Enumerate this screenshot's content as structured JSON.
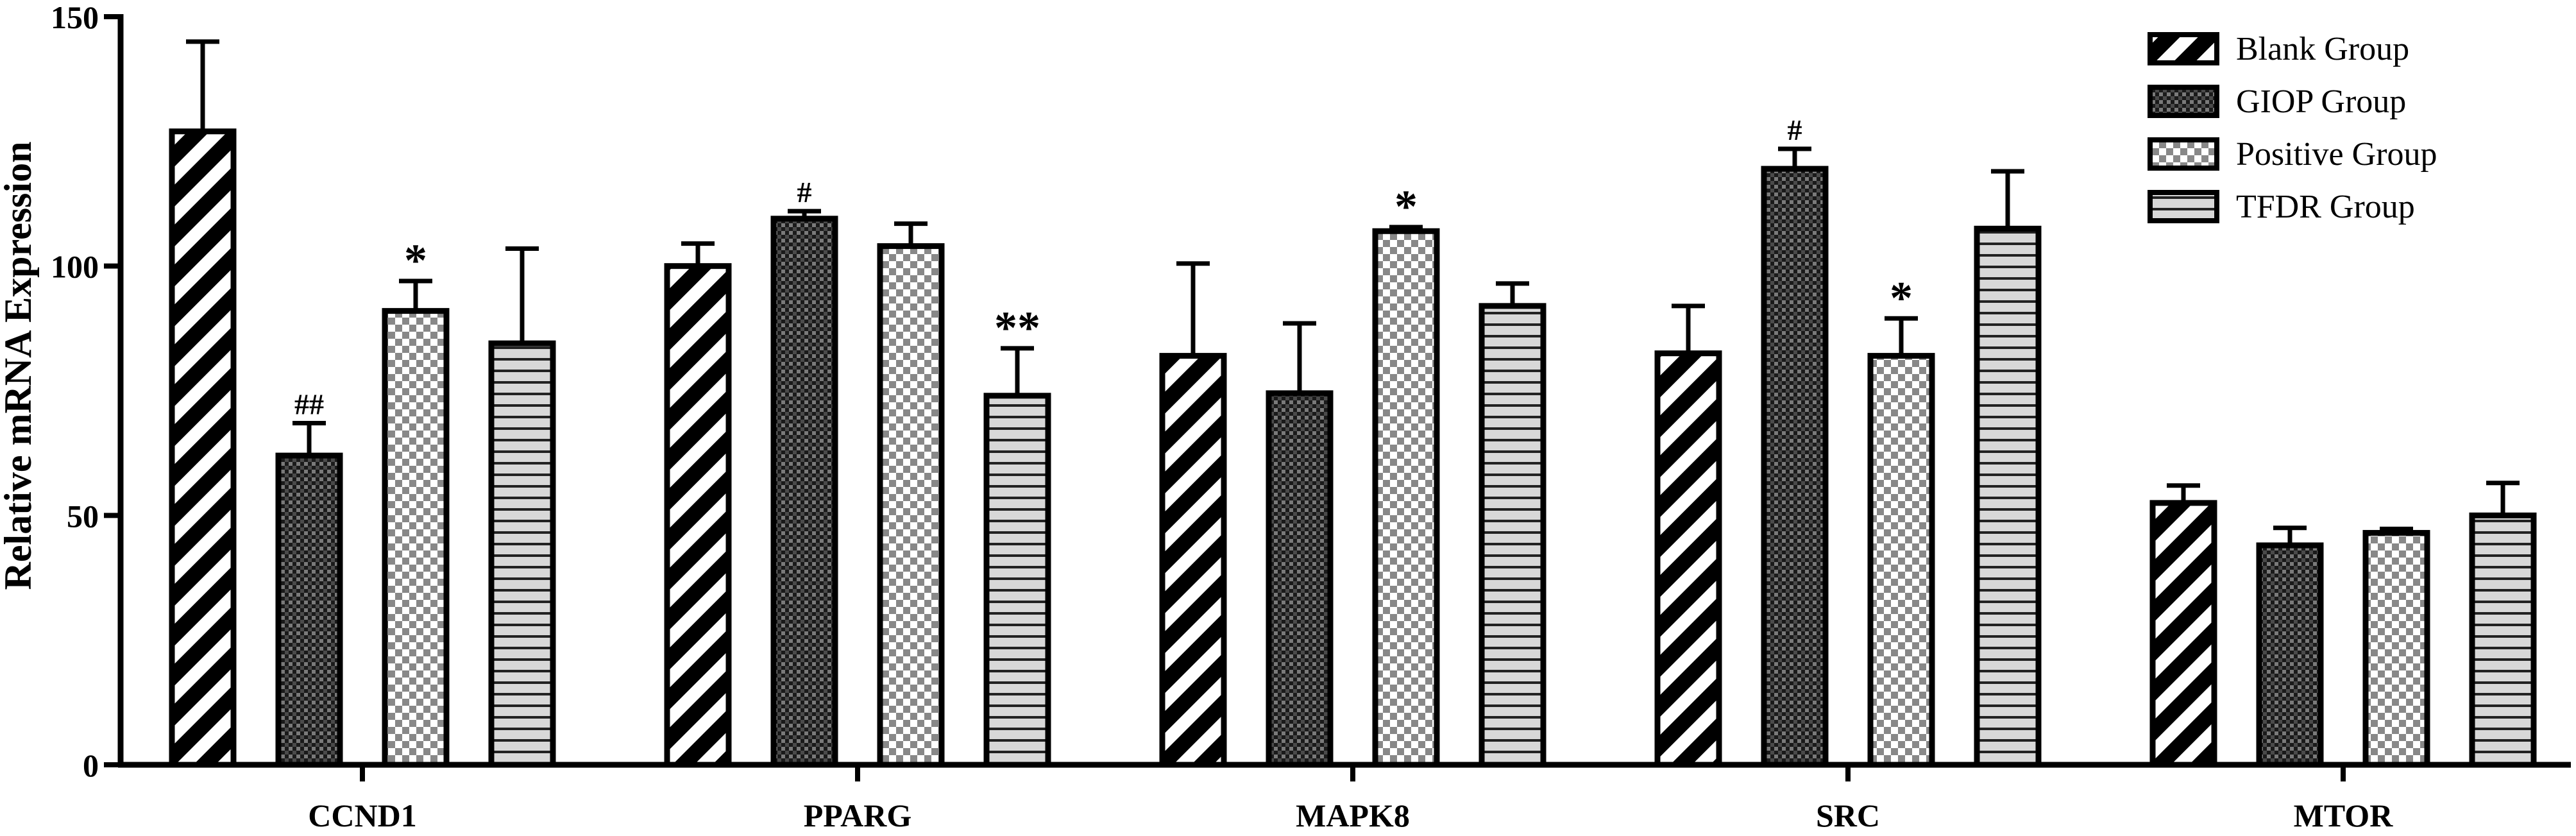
{
  "chart_data": {
    "type": "bar",
    "ylabel": "Relative mRNA Expression",
    "xlabel": "",
    "ylim": [
      0,
      150
    ],
    "yticks": [
      "0",
      "50",
      "100",
      "150"
    ],
    "categories": [
      "CCND1",
      "PPARG",
      "MAPK8",
      "SRC",
      "MTOR"
    ],
    "series": [
      {
        "name": "Blank Group",
        "pattern": "diagonal",
        "values": [
          127,
          100,
          82,
          82.5,
          52.5
        ],
        "errors": [
          18,
          4.5,
          18.5,
          9.5,
          3.5
        ],
        "marks": [
          "",
          "",
          "",
          "",
          ""
        ]
      },
      {
        "name": "GIOP Group",
        "pattern": "fine-check",
        "values": [
          62,
          109.5,
          74.5,
          119.5,
          44
        ],
        "errors": [
          6.5,
          1.5,
          14,
          4,
          3.5
        ],
        "marks": [
          "##",
          "#",
          "",
          "#",
          ""
        ]
      },
      {
        "name": "Positive Group",
        "pattern": "check",
        "values": [
          91,
          104,
          107,
          82,
          46.5
        ],
        "errors": [
          6,
          4.5,
          0.8,
          7.5,
          0.8
        ],
        "marks": [
          "*",
          "",
          "*",
          "*",
          ""
        ]
      },
      {
        "name": "TFDR Group",
        "pattern": "horizontal",
        "values": [
          84.5,
          74,
          92,
          107.5,
          50
        ],
        "errors": [
          19,
          9.5,
          4.5,
          11.5,
          6.5
        ],
        "marks": [
          "",
          "**",
          "",
          "",
          ""
        ]
      }
    ],
    "legend": "top-right",
    "grid": false,
    "colors": {
      "bar_stroke": "#000000",
      "fill_dark": "#111111",
      "fill_mid": "#555555",
      "fill_light": "#ffffff"
    }
  }
}
